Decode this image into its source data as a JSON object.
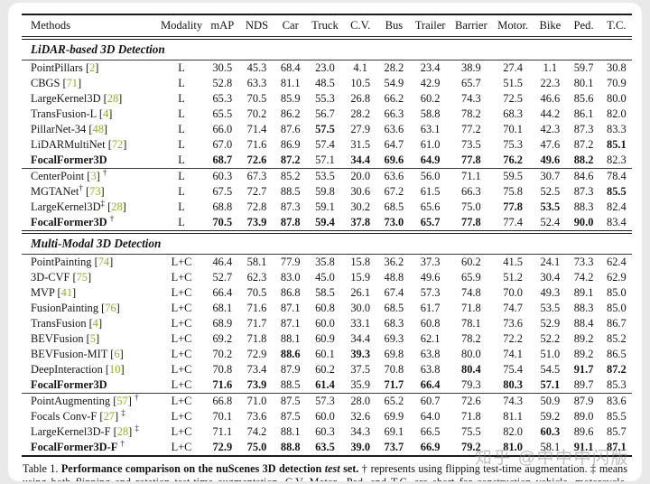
{
  "table": {
    "columns": [
      "Methods",
      "Modality",
      "mAP",
      "NDS",
      "Car",
      "Truck",
      "C.V.",
      "Bus",
      "Trailer",
      "Barrier",
      "Motor.",
      "Bike",
      "Ped.",
      "T.C."
    ],
    "citation_color": "#8fb321",
    "sections": [
      {
        "title": "LiDAR-based 3D Detection",
        "groups": [
          {
            "rule_after": "single",
            "rows": [
              {
                "name": "PointPillars",
                "cite": "2",
                "modality": "L",
                "values": [
                  "30.5",
                  "45.3",
                  "68.4",
                  "23.0",
                  "4.1",
                  "28.2",
                  "23.4",
                  "38.9",
                  "27.4",
                  "1.1",
                  "59.7",
                  "30.8"
                ],
                "bold": []
              },
              {
                "name": "CBGS",
                "cite": "71",
                "modality": "L",
                "values": [
                  "52.8",
                  "63.3",
                  "81.1",
                  "48.5",
                  "10.5",
                  "54.9",
                  "42.9",
                  "65.7",
                  "51.5",
                  "22.3",
                  "80.1",
                  "70.9"
                ],
                "bold": []
              },
              {
                "name": "LargeKernel3D",
                "cite": "28",
                "modality": "L",
                "values": [
                  "65.3",
                  "70.5",
                  "85.9",
                  "55.3",
                  "26.8",
                  "66.2",
                  "60.2",
                  "74.3",
                  "72.5",
                  "46.6",
                  "85.6",
                  "80.0"
                ],
                "bold": []
              },
              {
                "name": "TransFusion-L",
                "cite": "4",
                "modality": "L",
                "values": [
                  "65.5",
                  "70.2",
                  "86.2",
                  "56.7",
                  "28.2",
                  "66.3",
                  "58.8",
                  "78.2",
                  "68.3",
                  "44.2",
                  "86.1",
                  "82.0"
                ],
                "bold": []
              },
              {
                "name": "PillarNet-34",
                "cite": "48",
                "modality": "L",
                "values": [
                  "66.0",
                  "71.4",
                  "87.6",
                  "57.5",
                  "27.9",
                  "63.6",
                  "63.1",
                  "77.2",
                  "70.1",
                  "42.3",
                  "87.3",
                  "83.3"
                ],
                "bold": [
                  3
                ]
              },
              {
                "name": "LiDARMultiNet",
                "cite": "72",
                "modality": "L",
                "values": [
                  "67.0",
                  "71.6",
                  "86.9",
                  "57.4",
                  "31.5",
                  "64.7",
                  "61.0",
                  "73.5",
                  "75.3",
                  "47.6",
                  "87.2",
                  "85.1"
                ],
                "bold": [
                  11
                ]
              },
              {
                "name": "FocalFormer3D",
                "bold_name": true,
                "modality": "L",
                "values": [
                  "68.7",
                  "72.6",
                  "87.2",
                  "57.1",
                  "34.4",
                  "69.6",
                  "64.9",
                  "77.8",
                  "76.2",
                  "49.6",
                  "88.2",
                  "82.3"
                ],
                "bold": [
                  0,
                  1,
                  2,
                  4,
                  5,
                  6,
                  7,
                  8,
                  9,
                  10
                ]
              }
            ]
          },
          {
            "rule_after": "double",
            "rows": [
              {
                "name": "CenterPoint",
                "cite": "3",
                "tail_sup": "†",
                "modality": "L",
                "values": [
                  "60.3",
                  "67.3",
                  "85.2",
                  "53.5",
                  "20.0",
                  "63.6",
                  "56.0",
                  "71.1",
                  "59.5",
                  "30.7",
                  "84.6",
                  "78.4"
                ],
                "bold": []
              },
              {
                "name": "MGTANet",
                "name_sup": "†",
                "cite": "73",
                "modality": "L",
                "values": [
                  "67.5",
                  "72.7",
                  "88.5",
                  "59.8",
                  "30.6",
                  "67.2",
                  "61.5",
                  "66.3",
                  "75.8",
                  "52.5",
                  "87.3",
                  "85.5"
                ],
                "bold": [
                  11
                ]
              },
              {
                "name": "LargeKernel3D",
                "name_sup": "‡",
                "cite": "28",
                "modality": "L",
                "values": [
                  "68.8",
                  "72.8",
                  "87.3",
                  "59.1",
                  "30.2",
                  "68.5",
                  "65.6",
                  "75.0",
                  "77.8",
                  "53.5",
                  "88.3",
                  "82.4"
                ],
                "bold": [
                  8,
                  9
                ]
              },
              {
                "name": "FocalFormer3D",
                "bold_name": true,
                "tail_sup": "†",
                "modality": "L",
                "values": [
                  "70.5",
                  "73.9",
                  "87.8",
                  "59.4",
                  "37.8",
                  "73.0",
                  "65.7",
                  "77.8",
                  "77.4",
                  "52.4",
                  "90.0",
                  "83.4"
                ],
                "bold": [
                  0,
                  1,
                  2,
                  3,
                  4,
                  5,
                  6,
                  7,
                  10
                ]
              }
            ]
          }
        ]
      },
      {
        "title": "Multi-Modal 3D Detection",
        "groups": [
          {
            "rule_after": "single",
            "rows": [
              {
                "name": "PointPainting",
                "cite": "74",
                "modality": "L+C",
                "values": [
                  "46.4",
                  "58.1",
                  "77.9",
                  "35.8",
                  "15.8",
                  "36.2",
                  "37.3",
                  "60.2",
                  "41.5",
                  "24.1",
                  "73.3",
                  "62.4"
                ],
                "bold": []
              },
              {
                "name": "3D-CVF",
                "cite": "75",
                "modality": "L+C",
                "values": [
                  "52.7",
                  "62.3",
                  "83.0",
                  "45.0",
                  "15.9",
                  "48.8",
                  "49.6",
                  "65.9",
                  "51.2",
                  "30.4",
                  "74.2",
                  "62.9"
                ],
                "bold": []
              },
              {
                "name": "MVP",
                "cite": "41",
                "modality": "L+C",
                "values": [
                  "66.4",
                  "70.5",
                  "86.8",
                  "58.5",
                  "26.1",
                  "67.4",
                  "57.3",
                  "74.8",
                  "70.0",
                  "49.3",
                  "89.1",
                  "85.0"
                ],
                "bold": []
              },
              {
                "name": "FusionPainting",
                "cite": "76",
                "modality": "L+C",
                "values": [
                  "68.1",
                  "71.6",
                  "87.1",
                  "60.8",
                  "30.0",
                  "68.5",
                  "61.7",
                  "71.8",
                  "74.7",
                  "53.5",
                  "88.3",
                  "85.0"
                ],
                "bold": []
              },
              {
                "name": "TransFusion",
                "cite": "4",
                "modality": "L+C",
                "values": [
                  "68.9",
                  "71.7",
                  "87.1",
                  "60.0",
                  "33.1",
                  "68.3",
                  "60.8",
                  "78.1",
                  "73.6",
                  "52.9",
                  "88.4",
                  "86.7"
                ],
                "bold": []
              },
              {
                "name": "BEVFusion",
                "cite": "5",
                "modality": "L+C",
                "values": [
                  "69.2",
                  "71.8",
                  "88.1",
                  "60.9",
                  "34.4",
                  "69.3",
                  "62.1",
                  "78.2",
                  "72.2",
                  "52.2",
                  "89.2",
                  "85.2"
                ],
                "bold": []
              },
              {
                "name": "BEVFusion-MIT",
                "cite": "6",
                "modality": "L+C",
                "values": [
                  "70.2",
                  "72.9",
                  "88.6",
                  "60.1",
                  "39.3",
                  "69.8",
                  "63.8",
                  "80.0",
                  "74.1",
                  "51.0",
                  "89.2",
                  "86.5"
                ],
                "bold": [
                  2,
                  4
                ]
              },
              {
                "name": "DeepInteraction",
                "cite": "10",
                "modality": "L+C",
                "values": [
                  "70.8",
                  "73.4",
                  "87.9",
                  "60.2",
                  "37.5",
                  "70.8",
                  "63.8",
                  "80.4",
                  "75.4",
                  "54.5",
                  "91.7",
                  "87.2"
                ],
                "bold": [
                  7,
                  10,
                  11
                ]
              },
              {
                "name": "FocalFormer3D",
                "bold_name": true,
                "modality": "L+C",
                "values": [
                  "71.6",
                  "73.9",
                  "88.5",
                  "61.4",
                  "35.9",
                  "71.7",
                  "66.4",
                  "79.3",
                  "80.3",
                  "57.1",
                  "89.7",
                  "85.3"
                ],
                "bold": [
                  0,
                  1,
                  3,
                  5,
                  6,
                  8,
                  9
                ]
              }
            ]
          },
          {
            "rule_after": "thick",
            "rows": [
              {
                "name": "PointAugmenting",
                "cite": "57",
                "tail_sup": "†",
                "modality": "L+C",
                "values": [
                  "66.8",
                  "71.0",
                  "87.5",
                  "57.3",
                  "28.0",
                  "65.2",
                  "60.7",
                  "72.6",
                  "74.3",
                  "50.9",
                  "87.9",
                  "83.6"
                ],
                "bold": []
              },
              {
                "name": "Focals Conv-F",
                "cite": "27",
                "tail_sup": "‡",
                "modality": "L+C",
                "values": [
                  "70.1",
                  "73.6",
                  "87.5",
                  "60.0",
                  "32.6",
                  "69.9",
                  "64.0",
                  "71.8",
                  "81.1",
                  "59.2",
                  "89.0",
                  "85.5"
                ],
                "bold": []
              },
              {
                "name": "LargeKernel3D-F",
                "cite": "28",
                "tail_sup": "‡",
                "modality": "L+C",
                "values": [
                  "71.1",
                  "74.2",
                  "88.1",
                  "60.3",
                  "34.3",
                  "69.1",
                  "66.5",
                  "75.5",
                  "82.0",
                  "60.3",
                  "89.6",
                  "85.7"
                ],
                "bold": [
                  9
                ]
              },
              {
                "name": "FocalFormer3D-F",
                "bold_name": true,
                "tail_sup": "†",
                "modality": "L+C",
                "values": [
                  "72.9",
                  "75.0",
                  "88.8",
                  "63.5",
                  "39.0",
                  "73.7",
                  "66.9",
                  "79.2",
                  "81.0",
                  "58.1",
                  "91.1",
                  "87.1"
                ],
                "bold": [
                  0,
                  1,
                  2,
                  3,
                  4,
                  5,
                  6,
                  7,
                  8,
                  10,
                  11
                ]
              }
            ]
          }
        ]
      }
    ]
  },
  "caption": {
    "label": "Table 1. ",
    "bold_part": "Performance comparison on the nuScenes 3D detection ",
    "italic_part": "test",
    "bold_part2": " set.",
    "rest": " † represents using flipping test-time augmentation. ‡ means using both flipping and rotation test-time augmentation. C.V, Motor., Ped. and T.C. are short for construction vehicle, motorcycle, pedestrian, and traffic cones, respectively."
  },
  "watermark": {
    "text": "知乎 @中中中闪版"
  }
}
